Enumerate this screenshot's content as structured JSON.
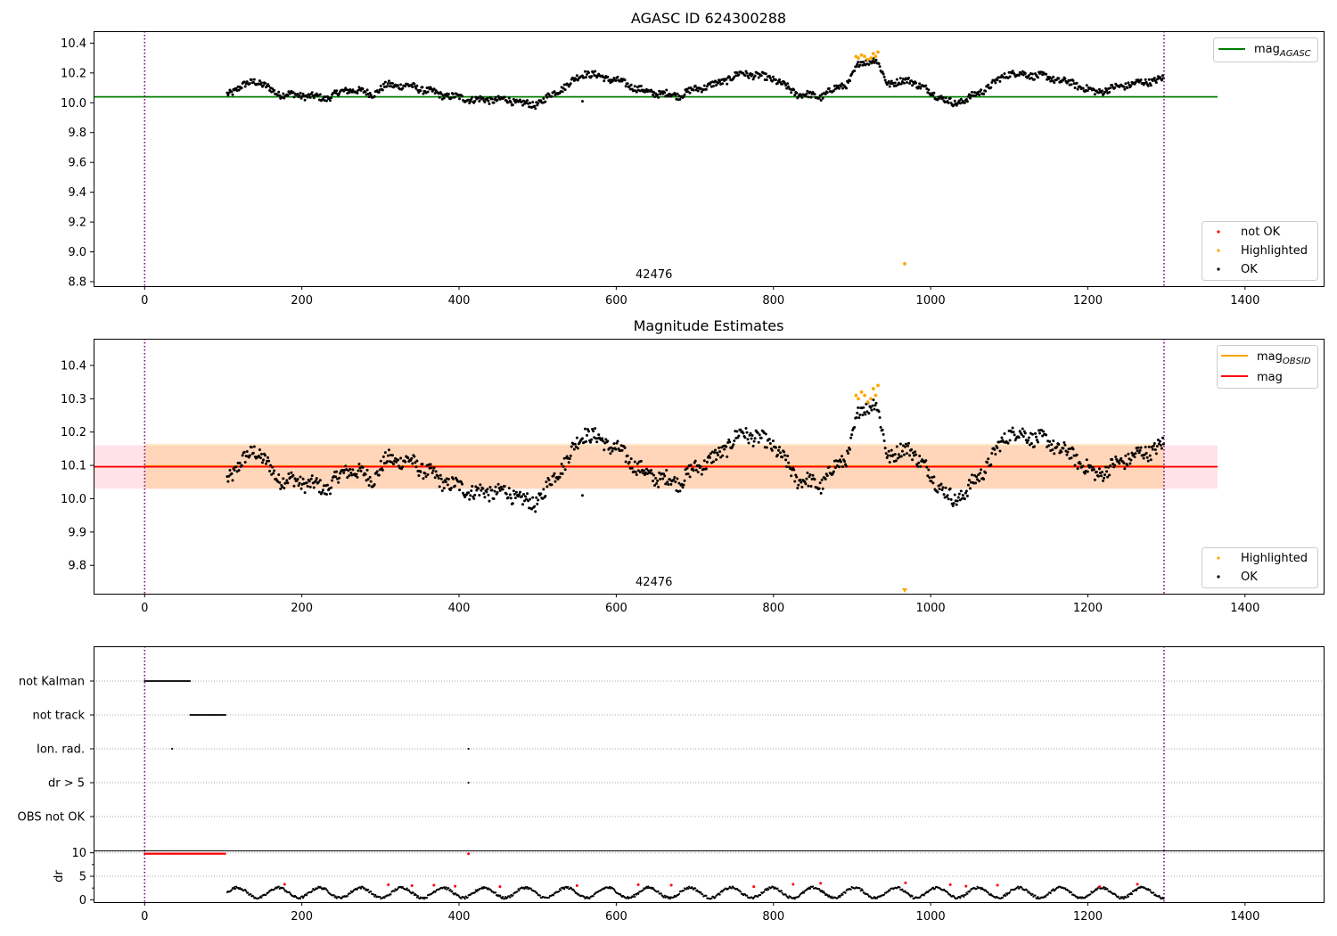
{
  "chart_data": [
    {
      "type": "scatter",
      "title": "AGASC ID 624300288",
      "xlabel": "",
      "ylabel": "",
      "xlim": [
        -65,
        1500
      ],
      "ylim": [
        8.77,
        10.48
      ],
      "x_ticks": [
        0,
        200,
        400,
        600,
        800,
        1000,
        1200,
        1400
      ],
      "y_ticks": [
        8.8,
        9.0,
        9.2,
        9.4,
        9.6,
        9.8,
        10.0,
        10.2,
        10.4
      ],
      "y_tick_labels": [
        "8.8",
        "9.0",
        "9.2",
        "9.4",
        "9.6",
        "9.8",
        "10.0",
        "10.2",
        "10.4"
      ],
      "vlines": [
        0,
        1297
      ],
      "vline_color": "#800080",
      "hline": {
        "name": "mag_AGASC",
        "value": 10.04,
        "x_range": [
          -65,
          1365
        ],
        "color": "#008000"
      },
      "obs_label": {
        "text": "42476",
        "x": 648
      },
      "legend_lines": [
        {
          "label": "mag",
          "sub": "AGASC",
          "color": "#008000"
        }
      ],
      "legend_points": [
        {
          "label": "not OK",
          "color": "#ff0000"
        },
        {
          "label": "Highlighted",
          "color": "#ffa500"
        },
        {
          "label": "OK",
          "color": "#000000"
        }
      ],
      "legend_placement": "upper-right / lower-right",
      "series": [
        {
          "name": "OK",
          "color": "#000000",
          "x_range": [
            105,
            1297
          ],
          "trend_anchors": [
            [
              105,
              10.06
            ],
            [
              140,
              10.15
            ],
            [
              170,
              10.06
            ],
            [
              200,
              10.05
            ],
            [
              230,
              10.03
            ],
            [
              260,
              10.09
            ],
            [
              290,
              10.06
            ],
            [
              310,
              10.12
            ],
            [
              340,
              10.11
            ],
            [
              380,
              10.05
            ],
            [
              420,
              10.02
            ],
            [
              460,
              10.02
            ],
            [
              495,
              9.98
            ],
            [
              520,
              10.06
            ],
            [
              560,
              10.2
            ],
            [
              600,
              10.15
            ],
            [
              640,
              10.07
            ],
            [
              680,
              10.05
            ],
            [
              700,
              10.09
            ],
            [
              730,
              10.13
            ],
            [
              760,
              10.2
            ],
            [
              800,
              10.16
            ],
            [
              830,
              10.06
            ],
            [
              860,
              10.04
            ],
            [
              880,
              10.1
            ],
            [
              895,
              10.13
            ],
            [
              910,
              10.27
            ],
            [
              930,
              10.29
            ],
            [
              945,
              10.13
            ],
            [
              975,
              10.15
            ],
            [
              1000,
              10.07
            ],
            [
              1030,
              9.99
            ],
            [
              1060,
              10.06
            ],
            [
              1100,
              10.2
            ],
            [
              1140,
              10.18
            ],
            [
              1180,
              10.13
            ],
            [
              1210,
              10.07
            ],
            [
              1250,
              10.12
            ],
            [
              1297,
              10.16
            ]
          ]
        },
        {
          "name": "Highlighted",
          "color": "#ffa500",
          "points": [
            [
              905,
              10.31
            ],
            [
              908,
              10.3
            ],
            [
              912,
              10.32
            ],
            [
              916,
              10.31
            ],
            [
              920,
              10.29
            ],
            [
              924,
              10.3
            ],
            [
              927,
              10.33
            ],
            [
              930,
              10.31
            ],
            [
              933,
              10.34
            ],
            [
              967,
              8.92
            ]
          ]
        }
      ]
    },
    {
      "type": "scatter",
      "title": "Magnitude Estimates",
      "xlabel": "",
      "ylabel": "",
      "xlim": [
        -65,
        1500
      ],
      "ylim": [
        9.715,
        10.48
      ],
      "x_ticks": [
        0,
        200,
        400,
        600,
        800,
        1000,
        1200,
        1400
      ],
      "y_ticks": [
        9.8,
        9.9,
        10.0,
        10.1,
        10.2,
        10.3,
        10.4
      ],
      "y_tick_labels": [
        "9.8",
        "9.9",
        "10.0",
        "10.1",
        "10.2",
        "10.3",
        "10.4"
      ],
      "vlines": [
        0,
        1297
      ],
      "vline_color": "#800080",
      "hlines": [
        {
          "name": "mag_OBSID",
          "value": 10.098,
          "x_range": [
            0,
            1297
          ],
          "color": "#ffa500"
        },
        {
          "name": "mag",
          "value": 10.096,
          "x_range": [
            -65,
            1365
          ],
          "color": "#ff0000"
        }
      ],
      "bands": [
        {
          "name": "mag_OBSID band",
          "y_range": [
            10.03,
            10.165
          ],
          "x_range": [
            0,
            1297
          ],
          "color": "#ffa500",
          "opacity": 0.2
        },
        {
          "name": "mag band",
          "y_range": [
            10.03,
            10.16
          ],
          "x_range": [
            -65,
            1365
          ],
          "color": "#ffc0cb",
          "opacity": 0.45
        }
      ],
      "obs_label": {
        "text": "42476",
        "x": 648
      },
      "legend_lines": [
        {
          "label": "mag",
          "sub": "OBSID",
          "color": "#ffa500"
        },
        {
          "label": "mag",
          "sub": "",
          "color": "#ff0000"
        }
      ],
      "legend_points": [
        {
          "label": "Highlighted",
          "color": "#ffa500"
        },
        {
          "label": "OK",
          "color": "#000000"
        }
      ],
      "legend_placement": "upper-right / lower-right",
      "series": [
        {
          "name": "OK",
          "color": "#000000",
          "x_range": [
            105,
            1297
          ],
          "same_as_panel": 0
        },
        {
          "name": "Highlighted",
          "color": "#ffa500",
          "points": [
            [
              905,
              10.31
            ],
            [
              908,
              10.3
            ],
            [
              912,
              10.32
            ],
            [
              916,
              10.31
            ],
            [
              920,
              10.29
            ],
            [
              924,
              10.3
            ],
            [
              927,
              10.33
            ],
            [
              930,
              10.31
            ],
            [
              933,
              10.34
            ],
            [
              967,
              9.72
            ]
          ]
        }
      ]
    },
    {
      "type": "scatter",
      "title": "",
      "xlabel": "",
      "ylabel": "",
      "xlim": [
        -65,
        1500
      ],
      "category_labels": [
        "not Kalman",
        "not track",
        "Ion. rad.",
        "dr > 5",
        "OBS not OK"
      ],
      "vlines": [
        0,
        1297
      ],
      "vline_color": "#800080",
      "series": [
        {
          "name": "not Kalman",
          "x_range": [
            0,
            58
          ]
        },
        {
          "name": "not track",
          "x_range": [
            58,
            103
          ]
        },
        {
          "name": "Ion. rad.",
          "points_x": [
            35,
            412
          ]
        },
        {
          "name": "dr > 5",
          "points_x": [
            412
          ]
        },
        {
          "name": "OBS not OK",
          "points_x": []
        }
      ]
    },
    {
      "type": "scatter",
      "title": "",
      "xlabel": "",
      "ylabel": "dr",
      "xlim": [
        -65,
        1500
      ],
      "ylim": [
        -0.5,
        10.5
      ],
      "x_ticks": [
        0,
        200,
        400,
        600,
        800,
        1000,
        1200,
        1400
      ],
      "y_ticks": [
        0,
        5,
        10
      ],
      "y_tick_labels": [
        "0",
        "5",
        "10"
      ],
      "vlines": [
        0,
        1297
      ],
      "vline_color": "#800080",
      "series": [
        {
          "name": "not OK (dr=10)",
          "color": "#ff0000",
          "x_range": [
            0,
            103
          ],
          "value": 9.8
        },
        {
          "name": "not OK",
          "color": "#ff0000",
          "points": [
            [
              412,
              9.8
            ],
            [
              178,
              3.3
            ],
            [
              310,
              3.2
            ],
            [
              340,
              3.0
            ],
            [
              368,
              3.1
            ],
            [
              395,
              2.9
            ],
            [
              452,
              2.8
            ],
            [
              550,
              3.0
            ],
            [
              628,
              3.2
            ],
            [
              670,
              3.1
            ],
            [
              775,
              2.8
            ],
            [
              825,
              3.3
            ],
            [
              860,
              3.5
            ],
            [
              968,
              3.6
            ],
            [
              1025,
              3.2
            ],
            [
              1045,
              2.9
            ],
            [
              1085,
              3.1
            ],
            [
              1215,
              2.8
            ],
            [
              1263,
              3.3
            ]
          ]
        },
        {
          "name": "OK",
          "color": "#000000",
          "x_range": [
            105,
            1297
          ],
          "value_range": [
            0.2,
            3.0
          ]
        }
      ]
    }
  ]
}
